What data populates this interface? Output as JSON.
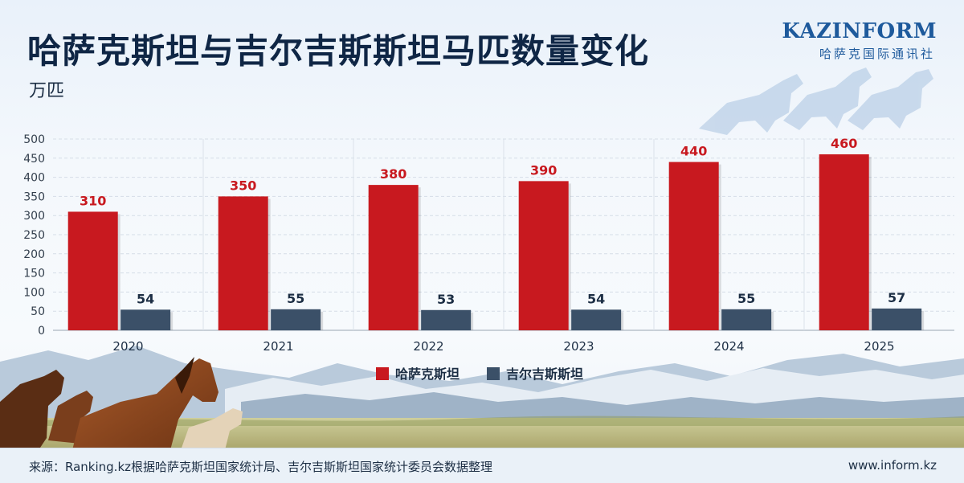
{
  "header": {
    "title": "哈萨克斯坦与吉尔吉斯斯坦马匹数量变化",
    "unit": "万匹"
  },
  "logo": {
    "name": "KAZINFORM",
    "subtitle": "哈萨克国际通讯社"
  },
  "colors": {
    "kazakhstan": "#c8191f",
    "kyrgyzstan": "#3b5068",
    "value_label_kz": "#c8191f",
    "value_label_kg": "#1c2e44"
  },
  "chart_data": {
    "type": "bar",
    "categories": [
      "2020",
      "2021",
      "2022",
      "2023",
      "2024",
      "2025"
    ],
    "series": [
      {
        "name": "哈萨克斯坦",
        "values": [
          310,
          350,
          380,
          390,
          440,
          460
        ]
      },
      {
        "name": "吉尔吉斯斯坦",
        "values": [
          54,
          55,
          53,
          54,
          55,
          57
        ]
      }
    ],
    "y_ticks": [
      0,
      50,
      100,
      150,
      200,
      250,
      300,
      350,
      400,
      450,
      500
    ],
    "ylim": [
      0,
      500
    ],
    "grid": true,
    "legend_position": "bottom-center"
  },
  "footer": {
    "source": "来源：Ranking.kz根据哈萨克斯坦国家统计局、吉尔吉斯斯坦国家统计委员会数据整理",
    "website": "www.inform.kz"
  }
}
